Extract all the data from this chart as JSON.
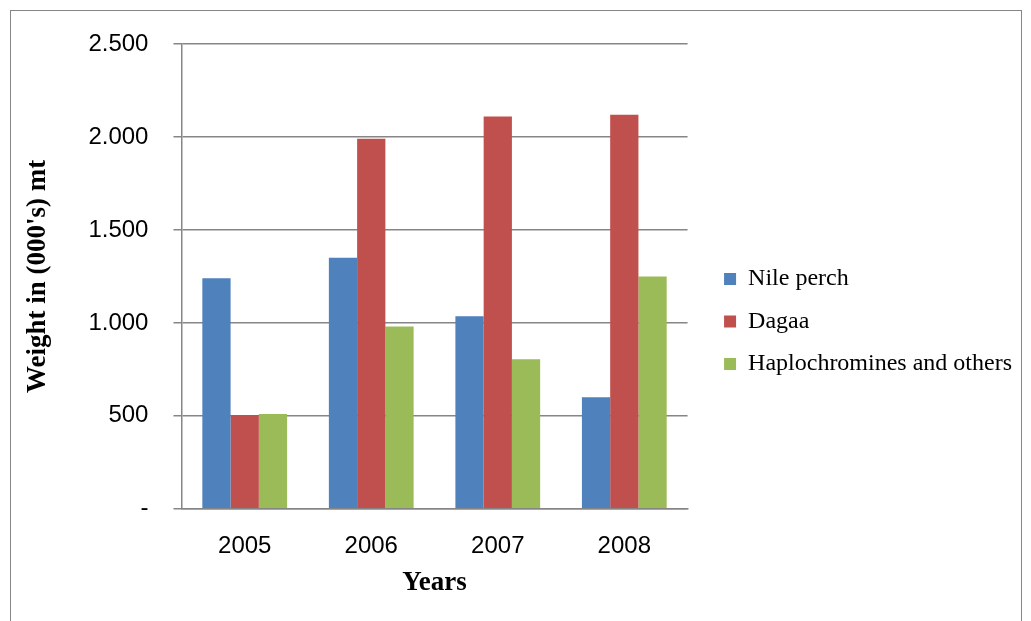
{
  "chart_data": {
    "type": "bar",
    "xlabel": "Years",
    "ylabel": "Weight in (000's) mt",
    "categories": [
      "2005",
      "2006",
      "2007",
      "2008"
    ],
    "series": [
      {
        "name": "Nile perch",
        "color": "#4f81bd",
        "values": [
          1240,
          1350,
          1035,
          600
        ]
      },
      {
        "name": "Dagaa",
        "color": "#c0504d",
        "values": [
          505,
          1990,
          2110,
          2120
        ]
      },
      {
        "name": "Haplochromines and others",
        "color": "#9bbb59",
        "values": [
          510,
          980,
          805,
          1250
        ]
      }
    ],
    "ylim": [
      0,
      2500
    ],
    "yticks": [
      {
        "value": 0,
        "label": "-"
      },
      500,
      {
        "value": 1000,
        "label": "1.000"
      },
      {
        "value": 1500,
        "label": "1.500"
      },
      {
        "value": 2000,
        "label": "2.000"
      },
      {
        "value": 2500,
        "label": "2.500"
      }
    ],
    "grid": "y",
    "legend": "right"
  }
}
